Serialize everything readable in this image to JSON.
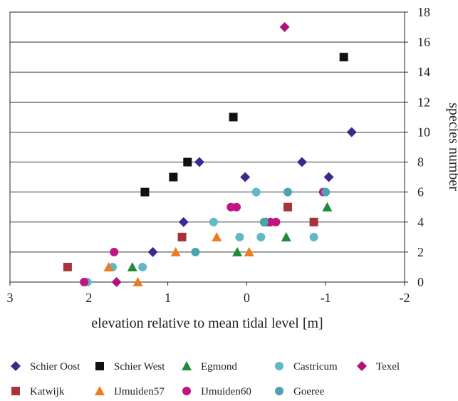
{
  "chart_data": {
    "type": "scatter",
    "title": "",
    "xlabel": "elevation relative to mean tidal level [m]",
    "ylabel": "species number",
    "xlim": [
      3,
      -2
    ],
    "ylim": [
      0,
      18
    ],
    "x_ticks": [
      "3",
      "2",
      "1",
      "0",
      "-1",
      "-2"
    ],
    "y_ticks": [
      "0",
      "2",
      "4",
      "6",
      "8",
      "10",
      "12",
      "14",
      "16",
      "18"
    ],
    "x_tick_values": [
      3,
      2,
      1,
      0,
      -1,
      -2
    ],
    "y_tick_values": [
      0,
      2,
      4,
      6,
      8,
      10,
      12,
      14,
      16,
      18
    ],
    "grid": "horizontal",
    "y_axis_side": "right",
    "legend_position": "bottom",
    "series": [
      {
        "name": "Schier Oost",
        "marker": "diamond",
        "color": "#3b2a8c",
        "points": [
          [
            1.19,
            2
          ],
          [
            0.8,
            4
          ],
          [
            0.6,
            8
          ],
          [
            0.02,
            7
          ],
          [
            -0.7,
            8
          ],
          [
            -1.04,
            7
          ],
          [
            -1.33,
            10
          ]
        ]
      },
      {
        "name": "Schier West",
        "marker": "square",
        "color": "#111111",
        "points": [
          [
            1.29,
            6
          ],
          [
            0.93,
            7
          ],
          [
            0.75,
            8
          ],
          [
            0.17,
            11
          ],
          [
            -1.23,
            15
          ]
        ]
      },
      {
        "name": "Egmond",
        "marker": "triangle",
        "color": "#1f8a3a",
        "points": [
          [
            1.45,
            1
          ],
          [
            0.12,
            2
          ],
          [
            -0.25,
            4
          ],
          [
            -0.5,
            3
          ],
          [
            -1.02,
            5
          ]
        ]
      },
      {
        "name": "Castricum",
        "marker": "circle",
        "color": "#5fb8c4",
        "points": [
          [
            2.02,
            0
          ],
          [
            1.7,
            1
          ],
          [
            1.32,
            1
          ],
          [
            0.42,
            4
          ],
          [
            0.09,
            3
          ],
          [
            -0.12,
            6
          ],
          [
            -0.18,
            3
          ],
          [
            -0.85,
            3
          ]
        ]
      },
      {
        "name": "Texel",
        "marker": "diamond",
        "color": "#b0127a",
        "points": [
          [
            1.65,
            0
          ],
          [
            -0.48,
            17
          ]
        ]
      },
      {
        "name": "Katwijk",
        "marker": "square",
        "color": "#a8323a",
        "points": [
          [
            2.27,
            1
          ],
          [
            0.82,
            3
          ],
          [
            -0.52,
            5
          ],
          [
            -0.85,
            4
          ]
        ]
      },
      {
        "name": "IJmuiden57",
        "marker": "triangle",
        "color": "#f07a22",
        "points": [
          [
            1.75,
            1
          ],
          [
            1.38,
            0
          ],
          [
            0.9,
            2
          ],
          [
            0.38,
            3
          ],
          [
            -0.03,
            2
          ]
        ]
      },
      {
        "name": "IJmuiden60",
        "marker": "circle",
        "color": "#c01483",
        "points": [
          [
            2.06,
            0
          ],
          [
            1.68,
            2
          ],
          [
            0.2,
            5
          ],
          [
            0.13,
            5
          ],
          [
            -0.3,
            4
          ],
          [
            -0.37,
            4
          ],
          [
            -0.97,
            6
          ]
        ]
      },
      {
        "name": "Goeree",
        "marker": "circle",
        "color": "#4ba3ae",
        "points": [
          [
            0.65,
            2
          ],
          [
            -0.22,
            4
          ],
          [
            -0.52,
            6
          ],
          [
            -1.0,
            6
          ]
        ]
      }
    ]
  }
}
